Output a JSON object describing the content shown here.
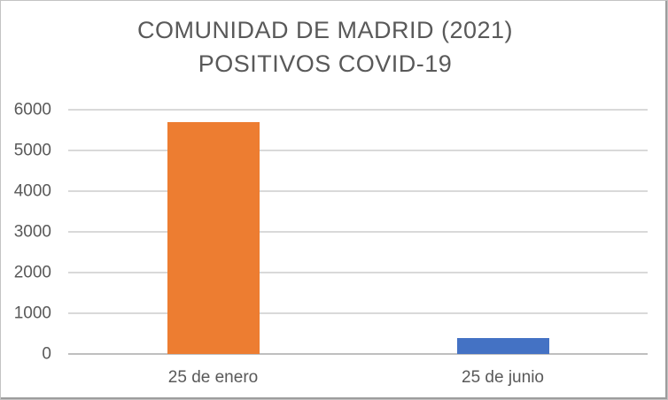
{
  "title": {
    "line1": "COMUNIDAD DE MADRID (2021)",
    "line2": "POSITIVOS COVID-19"
  },
  "chart_data": {
    "type": "bar",
    "title": "COMUNIDAD DE MADRID (2021) POSITIVOS COVID-19",
    "categories": [
      "25 de enero",
      "25 de junio"
    ],
    "values": [
      5700,
      400
    ],
    "bar_colors": [
      "#ED7D31",
      "#4472C4"
    ],
    "xlabel": "",
    "ylabel": "",
    "ylim": [
      0,
      6000
    ],
    "yticks": [
      0,
      1000,
      2000,
      3000,
      4000,
      5000,
      6000
    ],
    "grid": "horizontal",
    "legend": "none",
    "colors": {
      "title_text": "#595959",
      "tick_text": "#595959",
      "gridline": "#d9d9d9",
      "axis_line": "#bfbfbf",
      "background": "#ffffff"
    }
  }
}
